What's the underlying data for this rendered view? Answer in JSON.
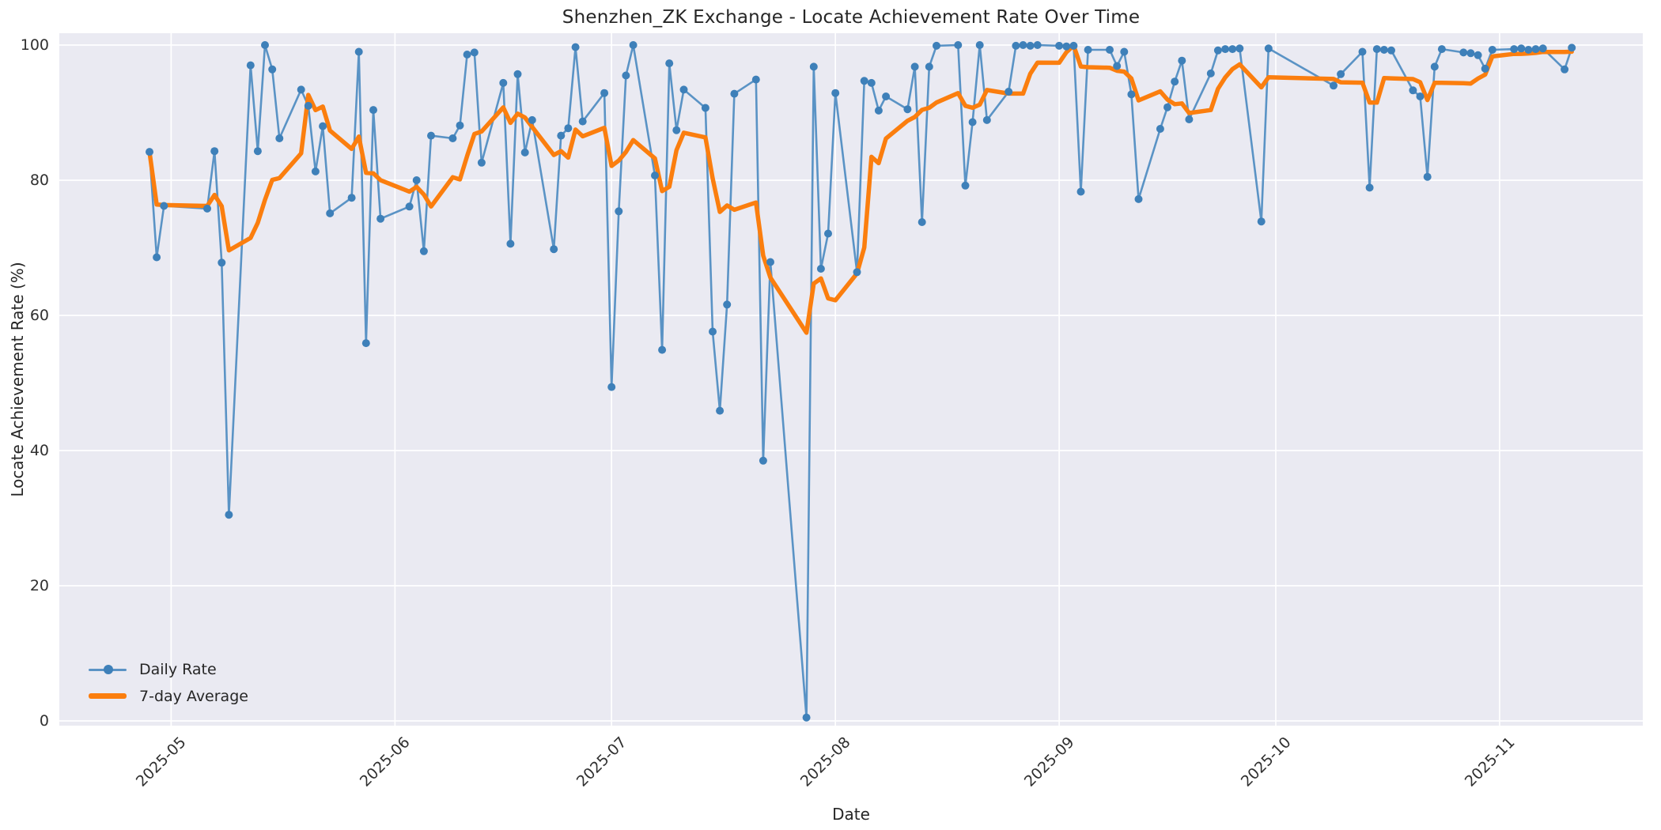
{
  "chart_data": {
    "type": "line",
    "title": "Shenzhen_ZK Exchange - Locate Achievement Rate Over Time",
    "xlabel": "Date",
    "ylabel": "Locate Achievement Rate (%)",
    "ylim": [
      0,
      100
    ],
    "yticks": [
      0,
      20,
      40,
      60,
      80,
      100
    ],
    "xticks": [
      {
        "date": "2025-05-01",
        "label": "2025-05"
      },
      {
        "date": "2025-06-01",
        "label": "2025-06"
      },
      {
        "date": "2025-07-01",
        "label": "2025-07"
      },
      {
        "date": "2025-08-01",
        "label": "2025-08"
      },
      {
        "date": "2025-09-01",
        "label": "2025-09"
      },
      {
        "date": "2025-10-01",
        "label": "2025-10"
      },
      {
        "date": "2025-11-01",
        "label": "2025-11"
      }
    ],
    "grid": true,
    "plot_background": "#eaeaf2",
    "gridline_color": "#ffffff",
    "legend": {
      "position": "lower-left",
      "entries": [
        "Daily Rate",
        "7-day Average"
      ]
    },
    "x": [
      "2025-04-28",
      "2025-04-29",
      "2025-04-30",
      "2025-05-06",
      "2025-05-07",
      "2025-05-08",
      "2025-05-09",
      "2025-05-12",
      "2025-05-13",
      "2025-05-14",
      "2025-05-15",
      "2025-05-16",
      "2025-05-19",
      "2025-05-20",
      "2025-05-21",
      "2025-05-22",
      "2025-05-23",
      "2025-05-26",
      "2025-05-27",
      "2025-05-28",
      "2025-05-29",
      "2025-05-30",
      "2025-06-03",
      "2025-06-04",
      "2025-06-05",
      "2025-06-06",
      "2025-06-09",
      "2025-06-10",
      "2025-06-11",
      "2025-06-12",
      "2025-06-13",
      "2025-06-16",
      "2025-06-17",
      "2025-06-18",
      "2025-06-19",
      "2025-06-20",
      "2025-06-23",
      "2025-06-24",
      "2025-06-25",
      "2025-06-26",
      "2025-06-27",
      "2025-06-30",
      "2025-07-01",
      "2025-07-02",
      "2025-07-03",
      "2025-07-04",
      "2025-07-07",
      "2025-07-08",
      "2025-07-09",
      "2025-07-10",
      "2025-07-11",
      "2025-07-14",
      "2025-07-15",
      "2025-07-16",
      "2025-07-17",
      "2025-07-18",
      "2025-07-21",
      "2025-07-22",
      "2025-07-23",
      "2025-07-28",
      "2025-07-29",
      "2025-07-30",
      "2025-07-31",
      "2025-08-01",
      "2025-08-04",
      "2025-08-05",
      "2025-08-06",
      "2025-08-07",
      "2025-08-08",
      "2025-08-11",
      "2025-08-12",
      "2025-08-13",
      "2025-08-14",
      "2025-08-15",
      "2025-08-18",
      "2025-08-19",
      "2025-08-20",
      "2025-08-21",
      "2025-08-22",
      "2025-08-25",
      "2025-08-26",
      "2025-08-27",
      "2025-08-28",
      "2025-08-29",
      "2025-09-01",
      "2025-09-02",
      "2025-09-03",
      "2025-09-04",
      "2025-09-05",
      "2025-09-08",
      "2025-09-09",
      "2025-09-10",
      "2025-09-11",
      "2025-09-12",
      "2025-09-15",
      "2025-09-16",
      "2025-09-17",
      "2025-09-18",
      "2025-09-19",
      "2025-09-22",
      "2025-09-23",
      "2025-09-24",
      "2025-09-25",
      "2025-09-26",
      "2025-09-29",
      "2025-09-30",
      "2025-10-09",
      "2025-10-10",
      "2025-10-13",
      "2025-10-14",
      "2025-10-15",
      "2025-10-16",
      "2025-10-17",
      "2025-10-20",
      "2025-10-21",
      "2025-10-22",
      "2025-10-23",
      "2025-10-24",
      "2025-10-27",
      "2025-10-28",
      "2025-10-29",
      "2025-10-30",
      "2025-10-31",
      "2025-11-03",
      "2025-11-04",
      "2025-11-05",
      "2025-11-06",
      "2025-11-07",
      "2025-11-10",
      "2025-11-11"
    ],
    "series": [
      {
        "name": "Daily Rate",
        "marker": "circle",
        "line_color": "#5a93c5",
        "marker_color": "#3e80b9",
        "values": [
          84.2,
          68.6,
          76.2,
          75.8,
          84.3,
          67.8,
          30.5,
          97.0,
          84.3,
          100.0,
          96.4,
          86.2,
          93.4,
          91.0,
          81.3,
          88.0,
          75.1,
          77.4,
          99.0,
          55.9,
          90.4,
          74.3,
          76.1,
          80.0,
          69.5,
          86.6,
          86.2,
          88.1,
          98.6,
          98.9,
          82.6,
          94.4,
          70.6,
          95.7,
          84.1,
          88.9,
          69.8,
          86.6,
          87.7,
          99.7,
          88.7,
          92.9,
          49.4,
          75.4,
          95.5,
          100.0,
          80.7,
          54.9,
          97.3,
          87.4,
          93.4,
          90.7,
          57.6,
          45.9,
          61.6,
          92.8,
          94.9,
          38.5,
          67.9,
          0.5,
          96.8,
          66.9,
          72.1,
          92.9,
          66.4,
          94.7,
          94.4,
          90.3,
          92.4,
          90.5,
          96.8,
          73.8,
          96.8,
          99.9,
          100.0,
          79.2,
          88.6,
          100.0,
          88.9,
          93.1,
          99.9,
          100.0,
          99.9,
          100.0,
          99.9,
          99.8,
          99.9,
          78.3,
          99.3,
          99.3,
          96.9,
          99.0,
          92.7,
          77.2,
          87.6,
          90.8,
          94.6,
          97.7,
          89.0,
          95.8,
          99.2,
          99.4,
          99.4,
          99.5,
          73.9,
          99.5,
          94.0,
          95.7,
          99.0,
          78.9,
          99.4,
          99.3,
          99.2,
          93.3,
          92.4,
          80.5,
          96.8,
          99.4,
          98.9,
          98.8,
          98.5,
          96.5,
          99.3,
          99.4,
          99.5,
          99.3,
          99.4,
          99.5,
          96.4,
          99.6
        ]
      },
      {
        "name": "7-day Average",
        "line_color": "#fb7e0e",
        "derived": "rolling_mean_of_last_7_points"
      }
    ]
  }
}
